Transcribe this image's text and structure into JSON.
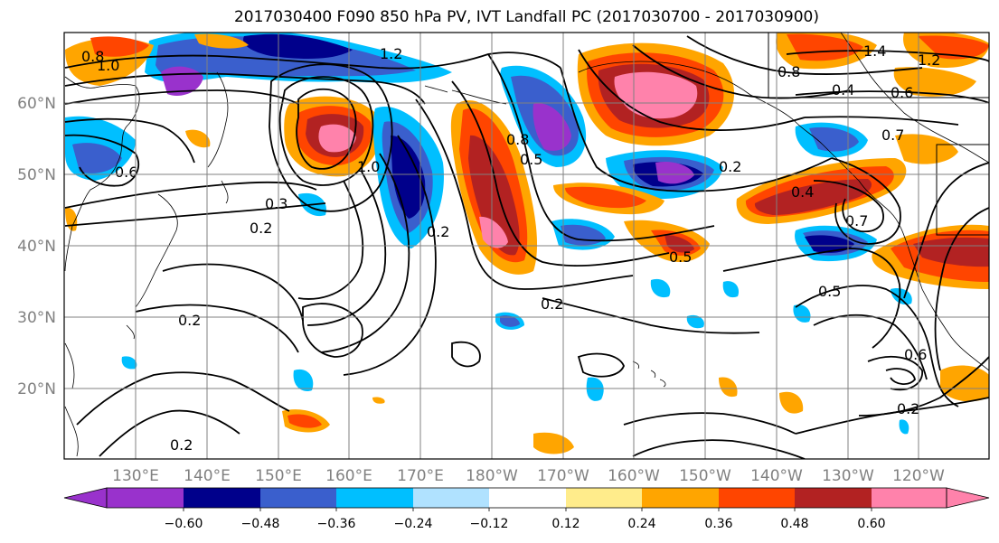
{
  "title": "2017030400 F090 850 hPa PV, IVT Landfall PC (2017030700 - 2017030900)",
  "lat_labels": [
    "60°N",
    "50°N",
    "40°N",
    "30°N",
    "20°N"
  ],
  "lon_labels": [
    "130°E",
    "140°E",
    "150°E",
    "160°E",
    "170°E",
    "180°W",
    "170°W",
    "160°W",
    "150°W",
    "140°W",
    "130°W",
    "120°W"
  ],
  "colorbar": {
    "levels": [
      "−0.60",
      "−0.48",
      "−0.36",
      "−0.24",
      "−0.12",
      "0.12",
      "0.24",
      "0.36",
      "0.48",
      "0.60"
    ],
    "colors": [
      "#9932cc",
      "#00008b",
      "#3a5fcd",
      "#00bfff",
      "#b0e2ff",
      "#ffffff",
      "#ffec8b",
      "#ffa500",
      "#ff4500",
      "#b22222",
      "#ff82ab"
    ]
  },
  "contour_labels": [
    "0.8",
    "1.0",
    "1.2",
    "1.4",
    "0.6",
    "0.4",
    "0.3",
    "0.2",
    "0.5",
    "0.7",
    "1.2",
    "1.0",
    "0.8",
    "0.6",
    "0.2",
    "0.2",
    "0.2",
    "0.2",
    "0.5",
    "0.6",
    "0.8",
    "0.4",
    "0.7",
    "0.5",
    "0.2",
    "0.2"
  ]
}
